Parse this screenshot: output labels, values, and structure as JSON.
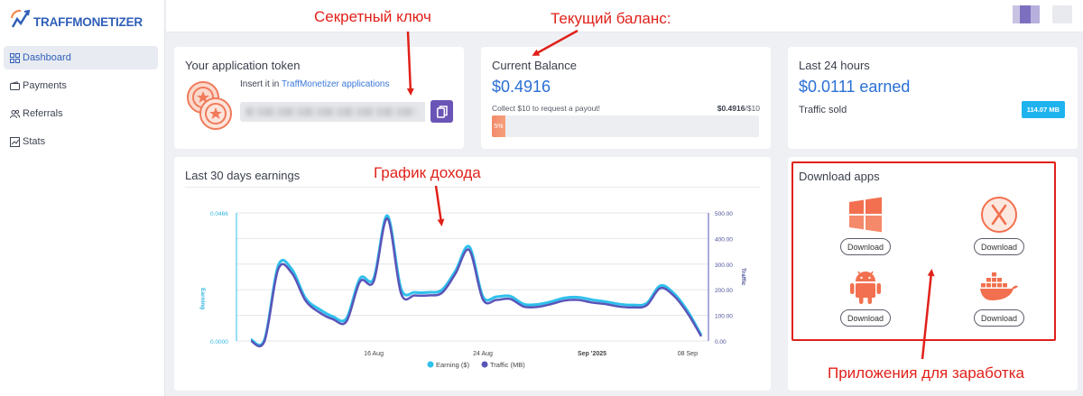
{
  "brand": {
    "name": "TRAFFMONETIZER"
  },
  "sidebar": {
    "items": [
      {
        "label": "Dashboard",
        "icon": "dashboard-icon",
        "active": true
      },
      {
        "label": "Payments",
        "icon": "wallet-icon",
        "active": false
      },
      {
        "label": "Referrals",
        "icon": "users-icon",
        "active": false
      },
      {
        "label": "Stats",
        "icon": "chart-icon",
        "active": false
      }
    ]
  },
  "token_card": {
    "title": "Your application token",
    "insert_prefix": "Insert it in",
    "insert_link": "TraffMonetizer applications",
    "token_value": ""
  },
  "balance_card": {
    "title": "Current Balance",
    "value": "$0.4916",
    "collect_text": "Collect $10 to request a payout!",
    "ratio_current": "$0.4916",
    "ratio_target": "/$10",
    "progress_label": "5%",
    "progress_fraction": 0.05
  },
  "last24_card": {
    "title": "Last 24 hours",
    "value": "$0.0111 earned",
    "traffic_label": "Traffic sold",
    "traffic_value": "114.07 MB"
  },
  "chart_card": {
    "title": "Last 30 days earnings"
  },
  "chart_data": {
    "type": "line",
    "x_tick_labels": [
      "16 Aug",
      "24 Aug",
      "Sep '2025",
      "08 Sep"
    ],
    "x_tick_index": [
      9,
      17,
      25,
      32
    ],
    "left_axis": {
      "label": "Earning",
      "ticks": [
        "0.0466",
        "0.0000"
      ],
      "range": [
        0,
        0.0466
      ]
    },
    "right_axis": {
      "label": "Traffic",
      "ticks": [
        "500.00",
        "400.00",
        "300.00",
        "200.00",
        "100.00",
        "0.00"
      ],
      "range": [
        0,
        500
      ]
    },
    "legend": [
      "Earning ($)",
      "Traffic (MB)"
    ],
    "series": [
      {
        "name": "Earning ($)",
        "color": "#2fc0ec",
        "values": [
          0,
          0,
          0.0269,
          0.0256,
          0.0151,
          0.0111,
          0.0084,
          0.0077,
          0.0223,
          0.0223,
          0.0451,
          0.0186,
          0.0172,
          0.0172,
          0.0181,
          0.0251,
          0.0338,
          0.0157,
          0.0156,
          0.0158,
          0.0129,
          0.0128,
          0.0138,
          0.0152,
          0.0154,
          0.0145,
          0.0138,
          0.0129,
          0.0126,
          0.0132,
          0.0196,
          0.0168,
          0.0104,
          0.0016
        ]
      },
      {
        "name": "Traffic (MB)",
        "color": "#5a55b8",
        "values": [
          0,
          0,
          280,
          265,
          158,
          112,
          85,
          76,
          232,
          233,
          478,
          186,
          178,
          178,
          188,
          264,
          355,
          162,
          160,
          164,
          134,
          133,
          144,
          158,
          160,
          150,
          144,
          134,
          131,
          139,
          206,
          176,
          108,
          18
        ]
      }
    ]
  },
  "download_card": {
    "title": "Download apps",
    "apps": [
      {
        "name": "windows-icon",
        "button": "Download"
      },
      {
        "name": "macos-icon",
        "button": "Download"
      },
      {
        "name": "android-icon",
        "button": "Download"
      },
      {
        "name": "docker-icon",
        "button": "Download"
      }
    ]
  },
  "annotations": {
    "secret_key": "Секретный ключ",
    "balance": "Текущий баланс:",
    "income_chart": "График дохода",
    "apps": "Приложения для заработка"
  },
  "colors": {
    "accent": "#2a6fd6",
    "purple": "#6a55b6",
    "annotation": "#e0211a",
    "badge": "#1fb3ee"
  }
}
